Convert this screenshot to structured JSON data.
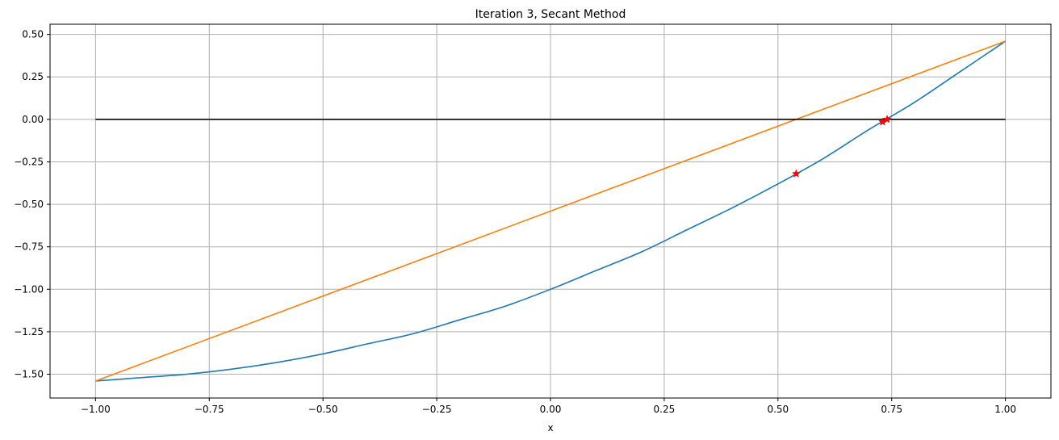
{
  "chart_data": {
    "type": "line",
    "title": "Iteration 3, Secant Method",
    "xlabel": "x",
    "ylabel": "",
    "xlim": [
      -1.1,
      1.1
    ],
    "ylim": [
      -1.64,
      0.56
    ],
    "xticks": [
      -1.0,
      -0.75,
      -0.5,
      -0.25,
      0.0,
      0.25,
      0.5,
      0.75,
      1.0
    ],
    "xtick_labels": [
      "−1.00",
      "−0.75",
      "−0.50",
      "−0.25",
      "0.00",
      "0.25",
      "0.50",
      "0.75",
      "1.00"
    ],
    "yticks": [
      -1.5,
      -1.25,
      -1.0,
      -0.75,
      -0.5,
      -0.25,
      0.0,
      0.25,
      0.5
    ],
    "ytick_labels": [
      "−1.50",
      "−1.25",
      "−1.00",
      "−0.75",
      "−0.50",
      "−0.25",
      "0.00",
      "0.25",
      "0.50"
    ],
    "grid": true,
    "legend": "none",
    "series": [
      {
        "kind": "line",
        "color": "#1f77b4",
        "x": [
          -1.0,
          -0.9,
          -0.8,
          -0.7,
          -0.6,
          -0.5,
          -0.4,
          -0.3,
          -0.2,
          -0.1,
          0.0,
          0.1,
          0.2,
          0.3,
          0.4,
          0.5,
          0.6,
          0.7,
          0.8,
          0.9,
          1.0
        ],
        "y": [
          -1.54,
          -1.52,
          -1.5,
          -1.47,
          -1.43,
          -1.38,
          -1.32,
          -1.26,
          -1.18,
          -1.1,
          -1.0,
          -0.89,
          -0.78,
          -0.65,
          -0.52,
          -0.38,
          -0.23,
          -0.06,
          0.1,
          0.28,
          0.46
        ]
      },
      {
        "kind": "line",
        "color": "#ff7f0e",
        "x": [
          -1.0,
          1.0
        ],
        "y": [
          -1.54,
          0.46
        ]
      },
      {
        "kind": "line",
        "color": "#000000",
        "x": [
          -1.0,
          1.0
        ],
        "y": [
          0.0,
          0.0
        ]
      },
      {
        "kind": "markers",
        "marker": "star",
        "color": "#ff0000",
        "x": [
          0.54,
          0.73,
          0.74
        ],
        "y": [
          -0.32,
          -0.015,
          0.0
        ]
      }
    ]
  }
}
